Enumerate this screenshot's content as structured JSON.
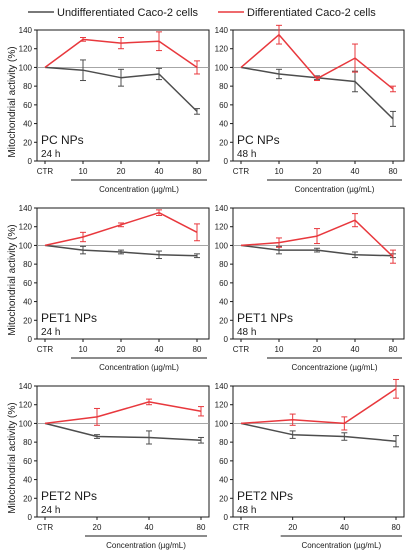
{
  "legend": {
    "items": [
      {
        "name": "Undifferentiated Caco-2 cells",
        "color": "#4d4d4d"
      },
      {
        "name": "Differentiated Caco-2 cells",
        "color": "#e8383d"
      }
    ],
    "placement": "top"
  },
  "colors": {
    "undiff": "#4d4d4d",
    "diff": "#e8383d",
    "reference_line": "#9a9a9a",
    "axis": "#1a1a1a"
  },
  "row_ylabel": "Mitochondrial activity (%)",
  "chart_data": [
    {
      "type": "line",
      "panel_label": "PC NPs",
      "time_label": "24 h",
      "x": [
        "CTR",
        "10",
        "20",
        "40",
        "80"
      ],
      "xlabel": "Concentration (µg/mL)",
      "ylabel": "Mitochondrial activity (%)",
      "ylim": [
        0,
        140
      ],
      "yticks": [
        0,
        20,
        40,
        60,
        80,
        100,
        120,
        140
      ],
      "show_ytick_labels": true,
      "reference_line": 100,
      "grid": false,
      "series": [
        {
          "name": "Undifferentiated Caco-2 cells",
          "values": [
            100,
            97,
            89,
            93,
            53
          ],
          "errors": [
            0,
            11,
            9,
            6,
            3
          ]
        },
        {
          "name": "Differentiated Caco-2 cells",
          "values": [
            100,
            130,
            126,
            128,
            100
          ],
          "errors": [
            0,
            2,
            6,
            10,
            7
          ]
        }
      ]
    },
    {
      "type": "line",
      "panel_label": "PC NPs",
      "time_label": "48 h",
      "x": [
        "CTR",
        "10",
        "20",
        "40",
        "80"
      ],
      "xlabel": "Concentration (µg/mL)",
      "ylim": [
        0,
        140
      ],
      "yticks": [
        0,
        20,
        40,
        60,
        80,
        100,
        120,
        140
      ],
      "show_ytick_labels": true,
      "reference_line": 100,
      "grid": false,
      "series": [
        {
          "name": "Undifferentiated Caco-2 cells",
          "values": [
            100,
            93,
            89,
            85,
            45
          ],
          "errors": [
            0,
            5,
            2,
            11,
            8
          ]
        },
        {
          "name": "Differentiated Caco-2 cells",
          "values": [
            100,
            135,
            88,
            110,
            77
          ],
          "errors": [
            0,
            10,
            2,
            15,
            3
          ]
        }
      ]
    },
    {
      "type": "line",
      "panel_label": "PET1 NPs",
      "time_label": "24 h",
      "x": [
        "CTR",
        "10",
        "20",
        "40",
        "80"
      ],
      "xlabel": "Concentration (µg/mL)",
      "ylabel": "Mitochondrial activity (%)",
      "ylim": [
        0,
        140
      ],
      "yticks": [
        0,
        20,
        40,
        60,
        80,
        100,
        120,
        140
      ],
      "show_ytick_labels": true,
      "reference_line": 100,
      "grid": false,
      "series": [
        {
          "name": "Undifferentiated Caco-2 cells",
          "values": [
            100,
            95,
            93,
            90,
            89
          ],
          "errors": [
            0,
            4,
            2,
            4,
            2
          ]
        },
        {
          "name": "Differentiated Caco-2 cells",
          "values": [
            100,
            109,
            122,
            135,
            114
          ],
          "errors": [
            0,
            5,
            2,
            3,
            9
          ]
        }
      ]
    },
    {
      "type": "line",
      "panel_label": "PET1 NPs",
      "time_label": "48 h",
      "x": [
        "CTR",
        "10",
        "20",
        "40",
        "80"
      ],
      "xlabel": "Concentrazione (µg/mL)",
      "ylim": [
        0,
        140
      ],
      "yticks": [
        0,
        20,
        40,
        60,
        80,
        100,
        120,
        140
      ],
      "show_ytick_labels": true,
      "reference_line": 100,
      "grid": false,
      "series": [
        {
          "name": "Undifferentiated Caco-2 cells",
          "values": [
            100,
            95,
            95,
            90,
            89
          ],
          "errors": [
            0,
            4,
            2,
            3,
            2
          ]
        },
        {
          "name": "Differentiated Caco-2 cells",
          "values": [
            100,
            103,
            110,
            127,
            88
          ],
          "errors": [
            0,
            5,
            8,
            7,
            7
          ]
        }
      ]
    },
    {
      "type": "line",
      "panel_label": "PET2 NPs",
      "time_label": "24 h",
      "x": [
        "CTR",
        "20",
        "40",
        "80"
      ],
      "xlabel": "Concentration (µg/mL)",
      "ylabel": "Mitochondrial activity (%)",
      "ylim": [
        0,
        140
      ],
      "yticks": [
        0,
        20,
        40,
        60,
        80,
        100,
        120,
        140
      ],
      "show_ytick_labels": true,
      "reference_line": 100,
      "grid": false,
      "series": [
        {
          "name": "Undifferentiated Caco-2 cells",
          "values": [
            100,
            86,
            85,
            82
          ],
          "errors": [
            0,
            2,
            7,
            3
          ]
        },
        {
          "name": "Differentiated Caco-2 cells",
          "values": [
            100,
            107,
            123,
            113
          ],
          "errors": [
            0,
            9,
            3,
            5
          ]
        }
      ]
    },
    {
      "type": "line",
      "panel_label": "PET2 NPs",
      "time_label": "48 h",
      "x": [
        "CTR",
        "20",
        "40",
        "80"
      ],
      "xlabel": "Concentration (µg/mL)",
      "ylim": [
        0,
        140
      ],
      "yticks": [
        0,
        20,
        40,
        60,
        80,
        100,
        120,
        140
      ],
      "show_ytick_labels": true,
      "reference_line": 100,
      "grid": false,
      "series": [
        {
          "name": "Undifferentiated Caco-2 cells",
          "values": [
            100,
            88,
            86,
            81
          ],
          "errors": [
            0,
            4,
            4,
            6
          ]
        },
        {
          "name": "Differentiated Caco-2 cells",
          "values": [
            100,
            104,
            100,
            137
          ],
          "errors": [
            0,
            6,
            7,
            10
          ]
        }
      ]
    }
  ]
}
